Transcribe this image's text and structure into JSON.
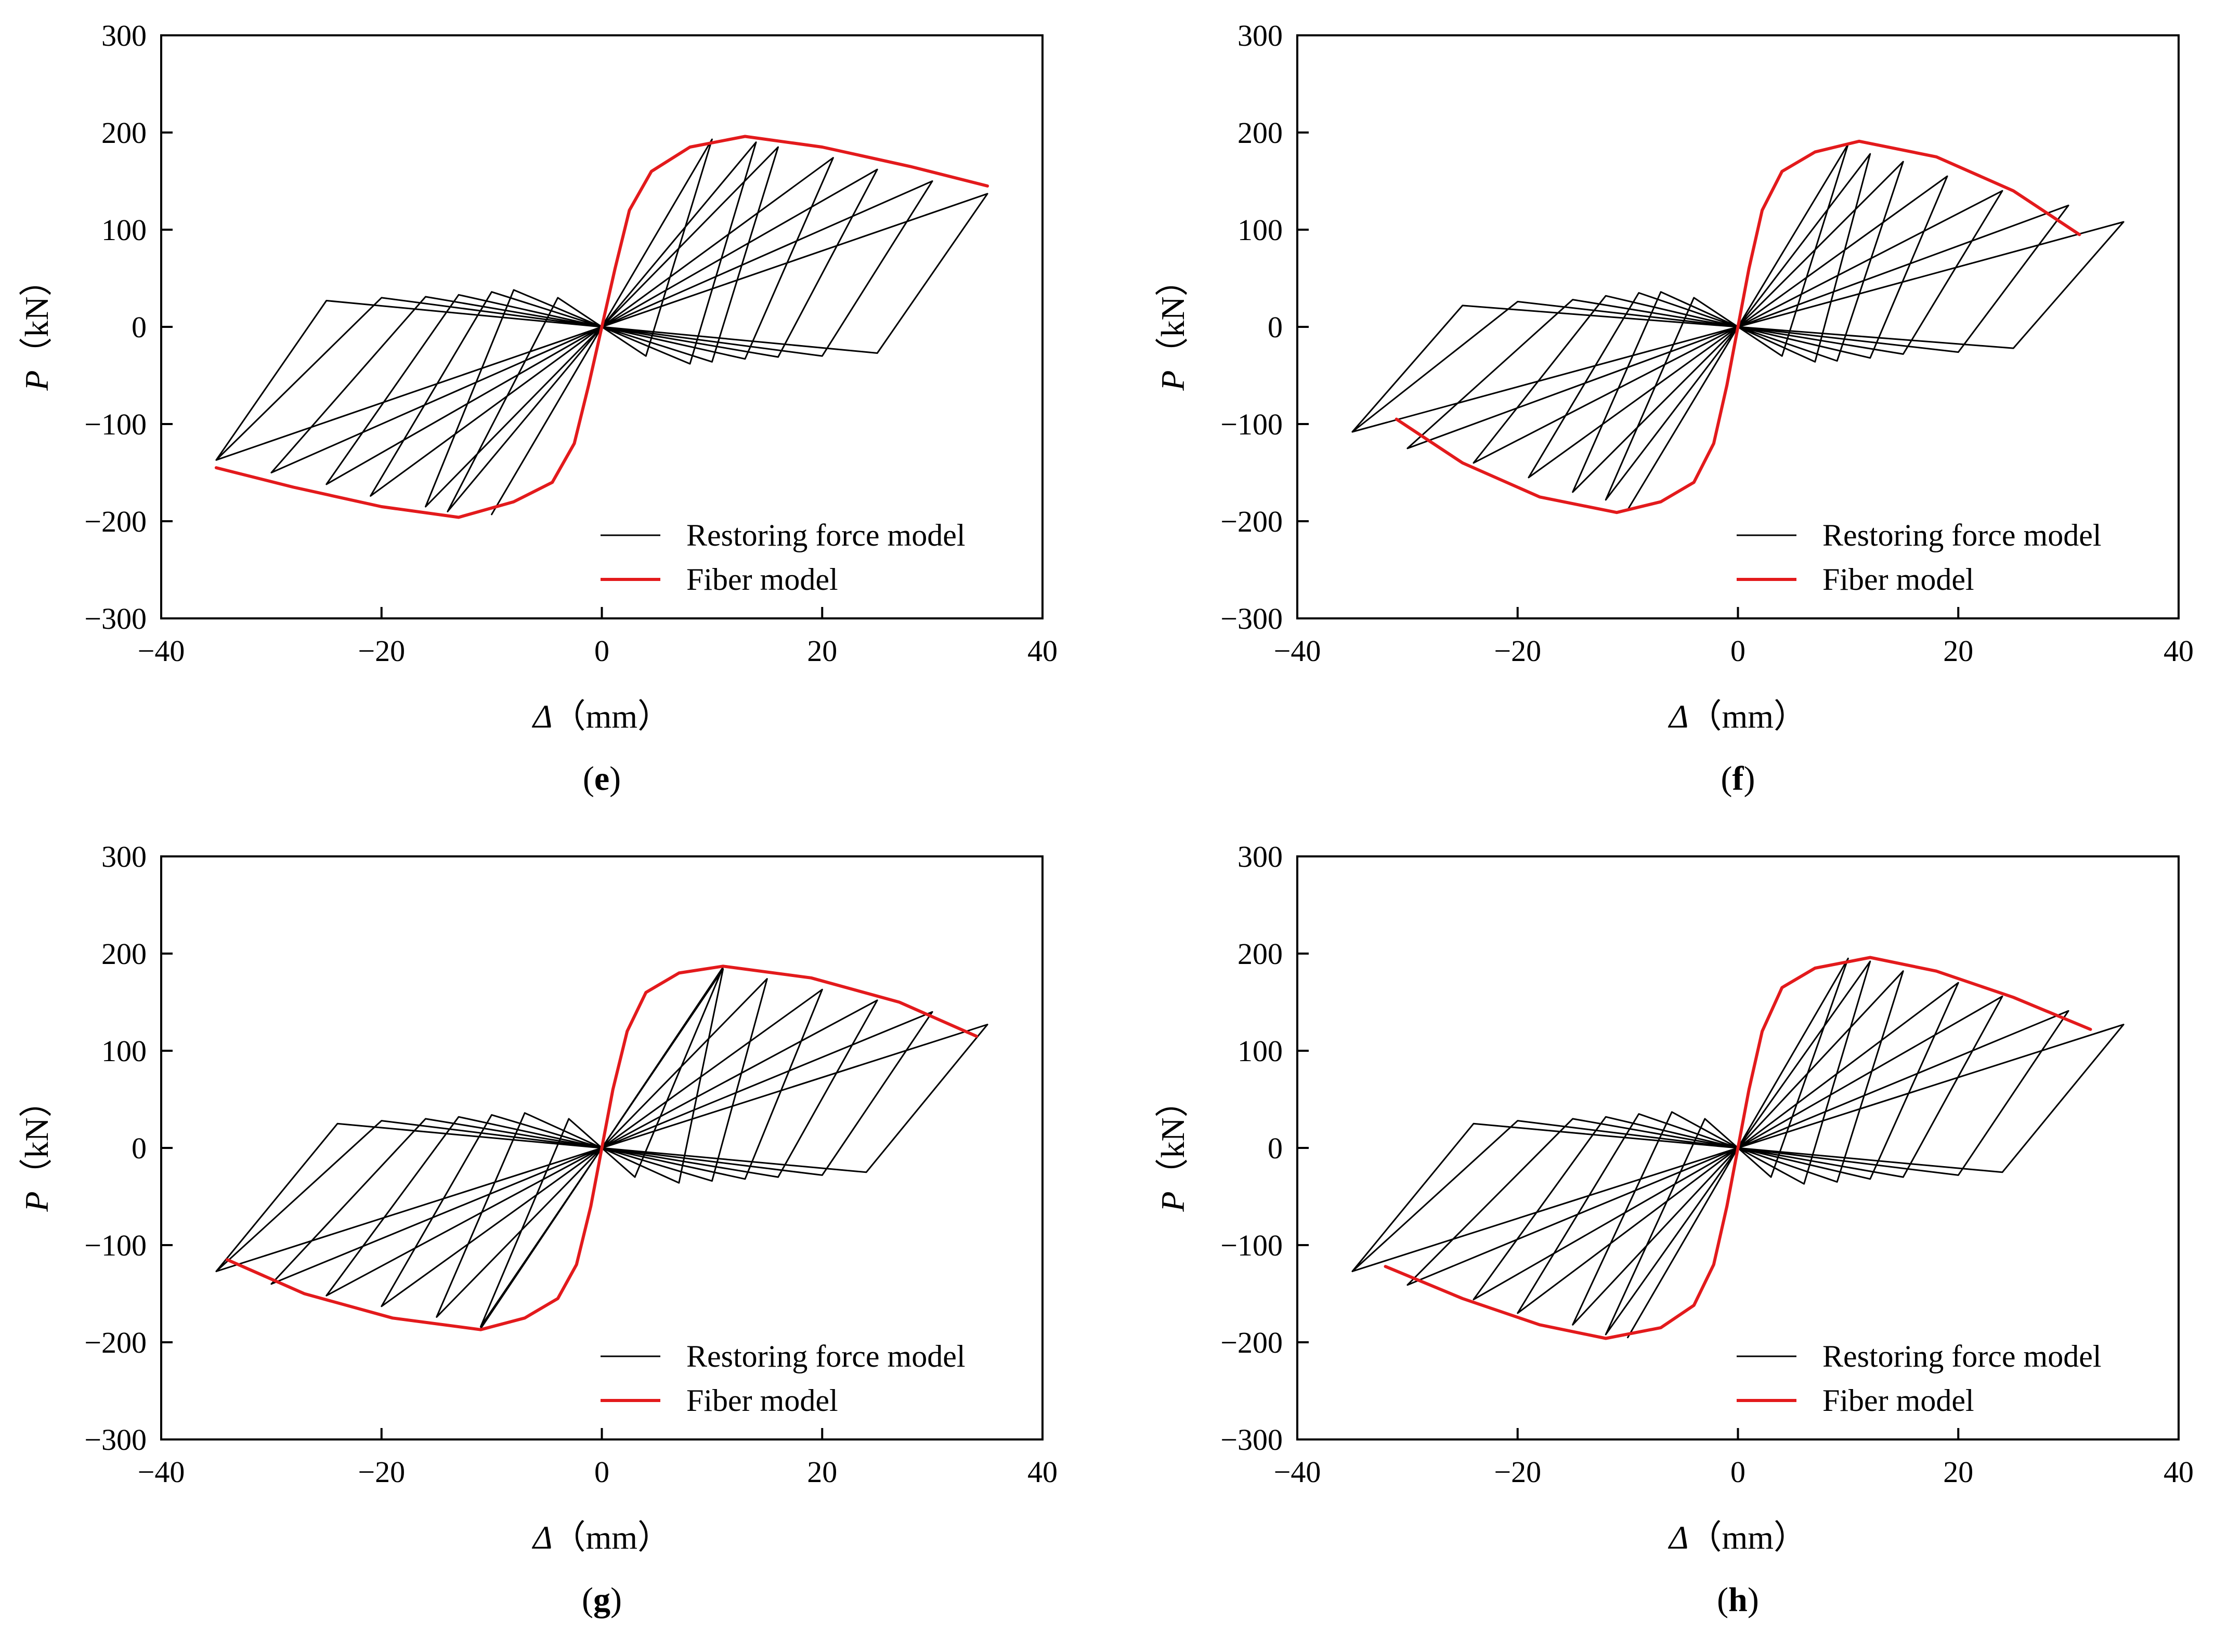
{
  "figure": {
    "legend_labels": [
      "Restoring force model",
      "Fiber model"
    ],
    "colors": {
      "restoring_force": "#000000",
      "fiber": "#e31a1c"
    }
  },
  "chart_data": [
    {
      "type": "line",
      "panel_label": "e",
      "xlabel_symbol": "Δ",
      "xlabel_unit": "（mm）",
      "ylabel_symbol": "P",
      "ylabel_unit": "（kN）",
      "xlim": [
        -40,
        40
      ],
      "ylim": [
        -300,
        300
      ],
      "xticks": [
        -40,
        -20,
        0,
        20,
        40
      ],
      "yticks": [
        -300,
        -200,
        -100,
        0,
        100,
        200,
        300
      ],
      "tick_labels_x": [
        "−40",
        "−20",
        "0",
        "20",
        "40"
      ],
      "tick_labels_y": [
        "−300",
        "−200",
        "−100",
        "0",
        "100",
        "200",
        "300"
      ],
      "legend_position": "bottom-right",
      "grid": false,
      "series": [
        {
          "name": "Restoring force model",
          "x": [
            -35,
            -25,
            25,
            35,
            -35,
            -20,
            20,
            30,
            -30,
            -16,
            16,
            25,
            -25,
            -13,
            13,
            21,
            -21,
            -10,
            10,
            16,
            -16,
            -8,
            8,
            14,
            -14,
            -4,
            4,
            10,
            -10
          ],
          "y": [
            -137,
            27,
            -27,
            137,
            -137,
            30,
            -30,
            150,
            -150,
            31,
            -31,
            162,
            -162,
            33,
            -33,
            174,
            -174,
            36,
            -36,
            185,
            -185,
            38,
            -38,
            190,
            -190,
            30,
            -30,
            193,
            -193
          ]
        },
        {
          "name": "Fiber model",
          "x": [
            -35,
            -28,
            -20,
            -13,
            -8,
            -4.5,
            -2.5,
            -1.2,
            0,
            1.2,
            2.5,
            4.5,
            8,
            13,
            20,
            28,
            35
          ],
          "y": [
            -145,
            -165,
            -185,
            -196,
            -180,
            -160,
            -120,
            -60,
            0,
            60,
            120,
            160,
            185,
            196,
            185,
            165,
            145
          ]
        }
      ]
    },
    {
      "type": "line",
      "panel_label": "f",
      "xlabel_symbol": "Δ",
      "xlabel_unit": "（mm）",
      "ylabel_symbol": "P",
      "ylabel_unit": "（kN）",
      "xlim": [
        -40,
        40
      ],
      "ylim": [
        -300,
        300
      ],
      "xticks": [
        -40,
        -20,
        0,
        20,
        40
      ],
      "yticks": [
        -300,
        -200,
        -100,
        0,
        100,
        200,
        300
      ],
      "tick_labels_x": [
        "−40",
        "−20",
        "0",
        "20",
        "40"
      ],
      "tick_labels_y": [
        "−300",
        "−200",
        "−100",
        "0",
        "100",
        "200",
        "300"
      ],
      "legend_position": "bottom-right",
      "grid": false,
      "series": [
        {
          "name": "Restoring force model",
          "x": [
            -35,
            -25,
            25,
            35,
            -35,
            -20,
            20,
            30,
            -30,
            -15,
            15,
            24,
            -24,
            -12,
            12,
            19,
            -19,
            -9,
            9,
            15,
            -15,
            -7,
            7,
            12,
            -12,
            -4,
            4,
            10,
            -10
          ],
          "y": [
            -108,
            22,
            -22,
            108,
            -108,
            26,
            -26,
            125,
            -125,
            28,
            -28,
            140,
            -140,
            32,
            -32,
            155,
            -155,
            35,
            -35,
            170,
            -170,
            36,
            -36,
            178,
            -178,
            30,
            -30,
            188,
            -188
          ]
        },
        {
          "name": "Fiber model",
          "x": [
            -31,
            -25,
            -18,
            -11,
            -7,
            -4,
            -2.2,
            -1,
            0,
            1,
            2.2,
            4,
            7,
            11,
            18,
            25,
            31
          ],
          "y": [
            -95,
            -140,
            -175,
            -191,
            -180,
            -160,
            -120,
            -60,
            0,
            60,
            120,
            160,
            180,
            191,
            175,
            140,
            95
          ]
        }
      ]
    },
    {
      "type": "line",
      "panel_label": "g",
      "xlabel_symbol": "Δ",
      "xlabel_unit": "（mm）",
      "ylabel_symbol": "P",
      "ylabel_unit": "（kN）",
      "xlim": [
        -40,
        40
      ],
      "ylim": [
        -300,
        300
      ],
      "xticks": [
        -40,
        -20,
        0,
        20,
        40
      ],
      "yticks": [
        -300,
        -200,
        -100,
        0,
        100,
        200,
        300
      ],
      "tick_labels_x": [
        "−40",
        "−20",
        "0",
        "20",
        "40"
      ],
      "tick_labels_y": [
        "−300",
        "−200",
        "−100",
        "0",
        "100",
        "200",
        "300"
      ],
      "legend_position": "bottom-right",
      "grid": false,
      "series": [
        {
          "name": "Restoring force model",
          "x": [
            -35,
            -24,
            24,
            35,
            -35,
            -20,
            20,
            30,
            -30,
            -16,
            16,
            25,
            -25,
            -13,
            13,
            20,
            -20,
            -10,
            10,
            15,
            -15,
            -7,
            7,
            11,
            -11,
            -3,
            3,
            11,
            -11
          ],
          "y": [
            -127,
            25,
            -25,
            127,
            -127,
            28,
            -28,
            140,
            -140,
            30,
            -30,
            152,
            -152,
            32,
            -32,
            163,
            -163,
            34,
            -34,
            174,
            -174,
            36,
            -36,
            184,
            -184,
            30,
            -30,
            186,
            -186
          ]
        },
        {
          "name": "Fiber model",
          "x": [
            -34,
            -27,
            -19,
            -11,
            -7,
            -4,
            -2.3,
            -1,
            0,
            1,
            2.3,
            4,
            7,
            11,
            19,
            27,
            34
          ],
          "y": [
            -115,
            -150,
            -175,
            -187,
            -175,
            -155,
            -120,
            -60,
            0,
            60,
            120,
            160,
            180,
            187,
            175,
            150,
            115
          ]
        }
      ]
    },
    {
      "type": "line",
      "panel_label": "h",
      "xlabel_symbol": "Δ",
      "xlabel_unit": "（mm）",
      "ylabel_symbol": "P",
      "ylabel_unit": "（kN）",
      "xlim": [
        -40,
        40
      ],
      "ylim": [
        -300,
        300
      ],
      "xticks": [
        -40,
        -20,
        0,
        20,
        40
      ],
      "yticks": [
        -300,
        -200,
        -100,
        0,
        100,
        200,
        300
      ],
      "tick_labels_x": [
        "−40",
        "−20",
        "0",
        "20",
        "40"
      ],
      "tick_labels_y": [
        "−300",
        "−200",
        "−100",
        "0",
        "100",
        "200",
        "300"
      ],
      "legend_position": "bottom-right",
      "grid": false,
      "series": [
        {
          "name": "Restoring force model",
          "x": [
            -35,
            -24,
            24,
            35,
            -35,
            -20,
            20,
            30,
            -30,
            -15,
            15,
            24,
            -24,
            -12,
            12,
            20,
            -20,
            -9,
            9,
            15,
            -15,
            -6,
            6,
            12,
            -12,
            -3,
            3,
            10,
            -10
          ],
          "y": [
            -127,
            25,
            -25,
            127,
            -127,
            28,
            -28,
            141,
            -141,
            30,
            -30,
            156,
            -156,
            32,
            -32,
            170,
            -170,
            35,
            -35,
            182,
            -182,
            37,
            -37,
            192,
            -192,
            30,
            -30,
            195,
            -195
          ]
        },
        {
          "name": "Fiber model",
          "x": [
            -32,
            -25,
            -18,
            -12,
            -7,
            -4,
            -2.2,
            -1,
            0,
            1,
            2.2,
            4,
            7,
            12,
            18,
            25,
            32
          ],
          "y": [
            -122,
            -155,
            -182,
            -196,
            -185,
            -162,
            -120,
            -60,
            0,
            60,
            120,
            165,
            185,
            196,
            182,
            155,
            122
          ]
        }
      ]
    }
  ]
}
